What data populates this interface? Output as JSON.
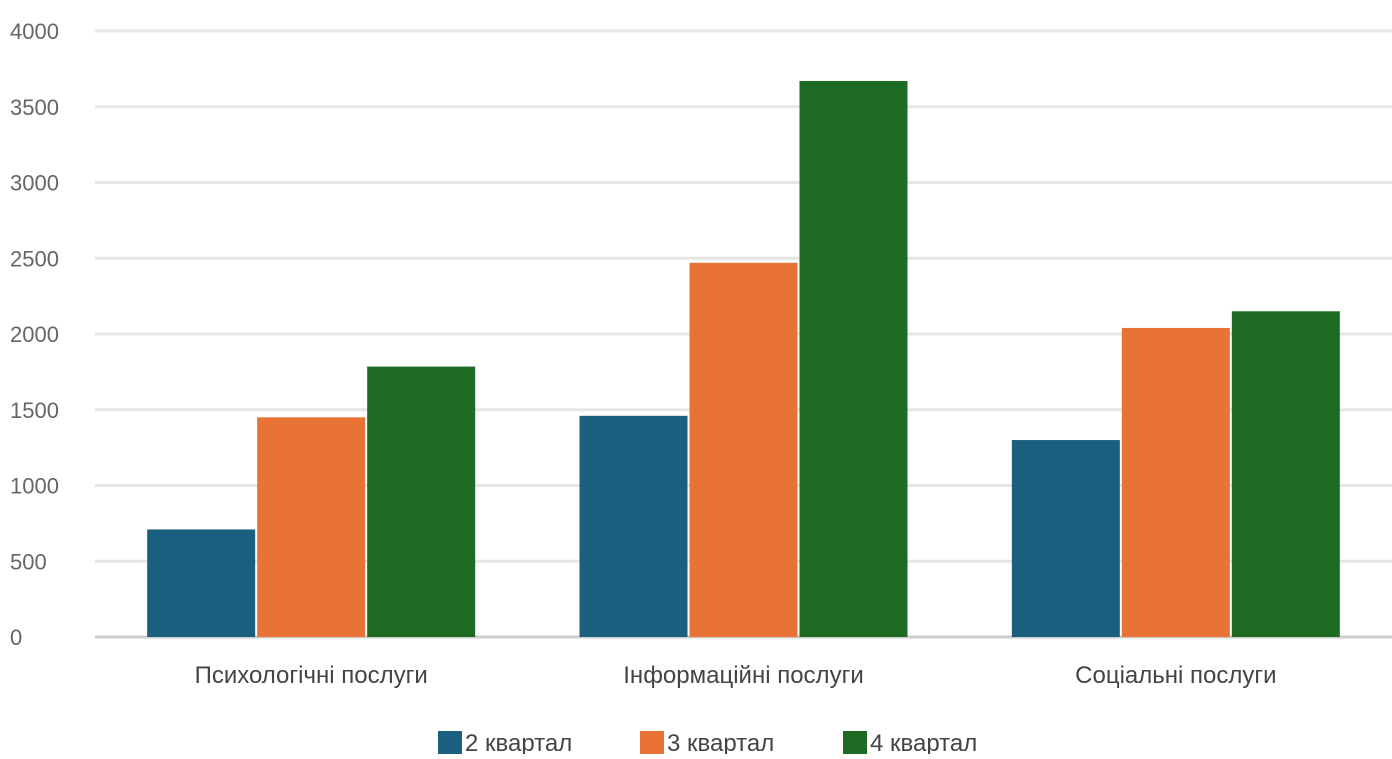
{
  "chart_data": {
    "type": "bar",
    "categories": [
      "Психологічні послуги",
      "Інформаційні послуги",
      "Соціальні послуги"
    ],
    "series": [
      {
        "name": "2 квартал",
        "color": "#1a5f80",
        "values": [
          710,
          1460,
          1300
        ]
      },
      {
        "name": "3 квартал",
        "color": "#e87335",
        "values": [
          1450,
          2470,
          2040
        ]
      },
      {
        "name": "4 квартал",
        "color": "#1e6b26",
        "values": [
          1785,
          3670,
          2150
        ]
      }
    ],
    "ylim": [
      0,
      4000
    ],
    "yticks": [
      0,
      500,
      1000,
      1500,
      2000,
      2500,
      3000,
      3500,
      4000
    ],
    "grid": true,
    "legend_position": "bottom"
  }
}
